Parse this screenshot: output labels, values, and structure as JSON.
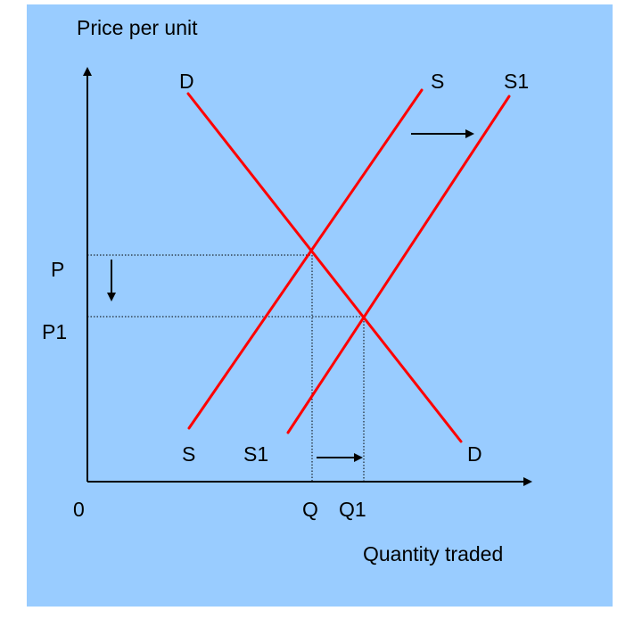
{
  "colors": {
    "background": "#99ccff",
    "curve": "#ff0000",
    "axis": "#000000"
  },
  "axes": {
    "y_label": "Price per unit",
    "x_label": "Quantity traded",
    "origin": "0"
  },
  "curves": {
    "demand_top": "D",
    "demand_bottom": "D",
    "supply_top": "S",
    "supply_bottom": "S",
    "supply_shift_top": "S1",
    "supply_shift_bottom": "S1"
  },
  "price_labels": {
    "initial": "P",
    "new": "P1"
  },
  "quantity_labels": {
    "initial": "Q",
    "new": "Q1"
  },
  "annotations": {
    "supply_shift_direction": "right",
    "price_change_direction": "down",
    "quantity_change_direction": "right"
  }
}
